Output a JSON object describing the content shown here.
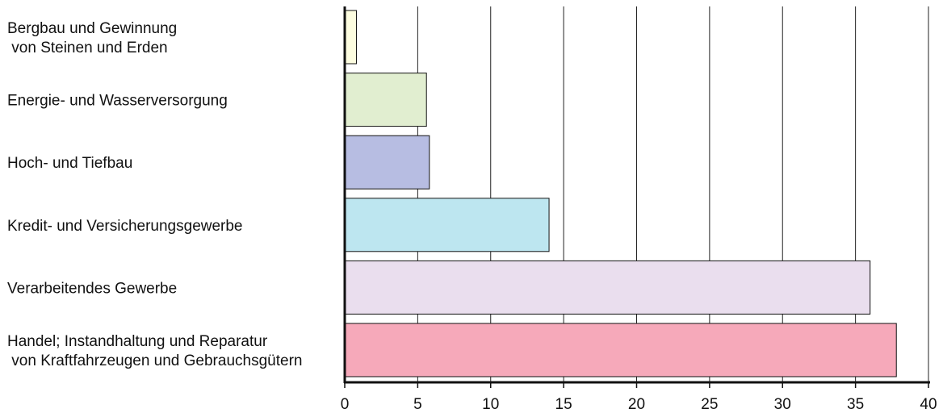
{
  "chart_data": {
    "type": "bar",
    "orientation": "horizontal",
    "categories": [
      [
        "Bergbau und Gewinnung",
        " von Steinen und Erden"
      ],
      [
        "Energie- und Wasserversorgung"
      ],
      [
        "Hoch- und Tiefbau"
      ],
      [
        "Kredit- und Versicherungsgewerbe"
      ],
      [
        "Verarbeitendes Gewerbe"
      ],
      [
        "Handel; Instandhaltung und Reparatur",
        " von Kraftfahrzeugen und Gebrauchsgütern"
      ]
    ],
    "values": [
      0.8,
      5.6,
      5.8,
      14.0,
      36.0,
      37.8
    ],
    "colors": [
      "#fdfde0",
      "#e1eed0",
      "#b7bde2",
      "#bde6f0",
      "#eadeee",
      "#f6a9ba"
    ],
    "xlim": [
      0,
      40
    ],
    "xticks": [
      0,
      5,
      10,
      15,
      20,
      25,
      30,
      35,
      40
    ],
    "grid": true
  }
}
